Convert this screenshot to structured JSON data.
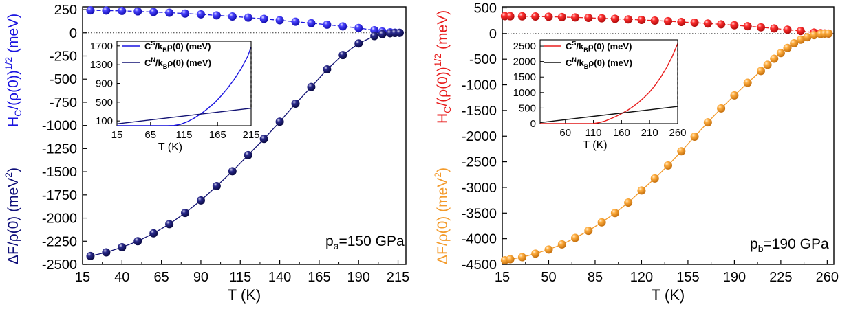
{
  "chart_data": [
    {
      "type": "scatter",
      "panel_label": "p",
      "panel_sub": "a",
      "panel_value": "=150 GPa",
      "xlabel": "T (K)",
      "xlim": [
        15,
        220
      ],
      "xticks": [
        15,
        40,
        65,
        90,
        115,
        140,
        165,
        190,
        215
      ],
      "ylim": [
        -2500,
        280
      ],
      "yticks": [
        250,
        0,
        -250,
        -500,
        -750,
        -1000,
        -1250,
        -1500,
        -1750,
        -2000,
        -2250,
        -2500
      ],
      "ylabel_upper": {
        "main": "H",
        "sub": "C",
        "rest": "/(ρ(0))",
        "sup": "1/2",
        "unit": " (meV)",
        "color": "#1a14e0"
      },
      "ylabel_lower": {
        "main": "ΔF/ρ(0) (meV",
        "sup": "2",
        "close": ")",
        "color": "#0f0f7a"
      },
      "series": [
        {
          "role": "Hc",
          "color": "#1a14e0",
          "x": [
            20,
            30,
            40,
            50,
            60,
            70,
            80,
            90,
            100,
            110,
            120,
            130,
            140,
            150,
            160,
            170,
            180,
            190,
            200,
            205,
            210,
            213,
            216
          ],
          "values": [
            242,
            240,
            236,
            231,
            224,
            217,
            208,
            199,
            188,
            176,
            164,
            150,
            135,
            120,
            104,
            88,
            70,
            52,
            28,
            14,
            6,
            2,
            0
          ]
        },
        {
          "role": "dF",
          "color": "#111173",
          "x": [
            20,
            30,
            40,
            50,
            60,
            70,
            80,
            90,
            100,
            110,
            120,
            130,
            140,
            150,
            160,
            170,
            180,
            190,
            200,
            205,
            210,
            213,
            216
          ],
          "values": [
            -2410,
            -2370,
            -2315,
            -2250,
            -2165,
            -2065,
            -1945,
            -1810,
            -1655,
            -1495,
            -1320,
            -1145,
            -960,
            -765,
            -585,
            -395,
            -240,
            -115,
            -35,
            -15,
            -5,
            -2,
            0
          ]
        }
      ],
      "inset": {
        "xlabel": "T (K)",
        "xlim": [
          15,
          215
        ],
        "xticks": [
          15,
          65,
          115,
          165,
          215
        ],
        "ylim": [
          0,
          1800
        ],
        "yticks": [
          100,
          500,
          900,
          1300,
          1700
        ],
        "series": [
          {
            "label_main": "C",
            "label_sup": "S",
            "label_rest": "/k",
            "label_sub": "B",
            "label_tail": "ρ(0) (meV)",
            "color": "#1a14e0",
            "x": [
              15,
              90,
              100,
              110,
              120,
              130,
              140,
              150,
              160,
              170,
              180,
              190,
              200,
              210,
              215
            ],
            "values": [
              0,
              0,
              5,
              30,
              85,
              160,
              250,
              360,
              480,
              630,
              800,
              990,
              1210,
              1480,
              1680
            ]
          },
          {
            "label_main": "C",
            "label_sup": "N",
            "label_rest": "/k",
            "label_sub": "B",
            "label_tail": "ρ(0) (meV)",
            "color": "#111173",
            "x": [
              15,
              215
            ],
            "values": [
              40,
              370
            ]
          }
        ]
      }
    },
    {
      "type": "scatter",
      "panel_label": "p",
      "panel_sub": "b",
      "panel_value": "=190 GPa",
      "xlabel": "T (K)",
      "xlim": [
        15,
        265
      ],
      "xticks": [
        15,
        50,
        85,
        120,
        155,
        190,
        225,
        260
      ],
      "ylim": [
        -4500,
        520
      ],
      "yticks": [
        500,
        0,
        -500,
        -1000,
        -1500,
        -2000,
        -2500,
        -3000,
        -3500,
        -4000,
        -4500
      ],
      "ylabel_upper": {
        "main": "H",
        "sub": "C",
        "rest": "/(ρ(0))",
        "sup": "1/2",
        "unit": " (meV)",
        "color": "#e81e1e"
      },
      "ylabel_lower": {
        "main": "ΔF/ρ(0) (meV",
        "sup": "2",
        "close": ")",
        "color": "#f39a2a"
      },
      "series": [
        {
          "role": "Hc",
          "color": "#e81e1e",
          "x": [
            17,
            21,
            30,
            40,
            50,
            60,
            70,
            80,
            90,
            100,
            110,
            120,
            130,
            140,
            150,
            160,
            170,
            180,
            190,
            200,
            210,
            220,
            230,
            240,
            250,
            255,
            258,
            261
          ],
          "values": [
            340,
            338,
            336,
            332,
            327,
            321,
            314,
            306,
            297,
            287,
            276,
            265,
            253,
            240,
            226,
            212,
            196,
            180,
            162,
            143,
            122,
            100,
            75,
            50,
            20,
            8,
            3,
            0
          ]
        },
        {
          "role": "dF",
          "color": "#f39a2a",
          "x": [
            17,
            21,
            30,
            40,
            50,
            60,
            70,
            80,
            90,
            100,
            110,
            120,
            130,
            140,
            150,
            160,
            170,
            180,
            190,
            200,
            210,
            215,
            220,
            225,
            230,
            235,
            240,
            245,
            250,
            255,
            258,
            261
          ],
          "values": [
            -4420,
            -4400,
            -4360,
            -4290,
            -4210,
            -4110,
            -3985,
            -3845,
            -3680,
            -3500,
            -3295,
            -3060,
            -2825,
            -2570,
            -2295,
            -2010,
            -1730,
            -1460,
            -1205,
            -960,
            -730,
            -610,
            -490,
            -380,
            -280,
            -190,
            -120,
            -70,
            -30,
            -10,
            -3,
            0
          ]
        }
      ],
      "inset": {
        "xlabel": "T (K)",
        "xlim": [
          15,
          260
        ],
        "xticks": [
          60,
          110,
          160,
          210,
          260
        ],
        "ylim": [
          0,
          2700
        ],
        "yticks": [
          0,
          500,
          1000,
          1500,
          2000,
          2500
        ],
        "series": [
          {
            "label_main": "C",
            "label_sup": "S",
            "label_rest": "/k",
            "label_sub": "B",
            "label_tail": "ρ(0) (meV)",
            "color": "#e81e1e",
            "x": [
              15,
              100,
              110,
              120,
              130,
              140,
              150,
              160,
              170,
              180,
              190,
              200,
              210,
              220,
              230,
              240,
              250,
              260
            ],
            "values": [
              0,
              0,
              5,
              30,
              80,
              150,
              230,
              320,
              420,
              540,
              680,
              840,
              1020,
              1240,
              1500,
              1800,
              2150,
              2580
            ]
          },
          {
            "label_main": "C",
            "label_sup": "N",
            "label_rest": "/k",
            "label_sub": "B",
            "label_tail": "ρ(0) (meV)",
            "color": "#111111",
            "x": [
              15,
              260
            ],
            "values": [
              30,
              550
            ]
          }
        ]
      }
    }
  ]
}
